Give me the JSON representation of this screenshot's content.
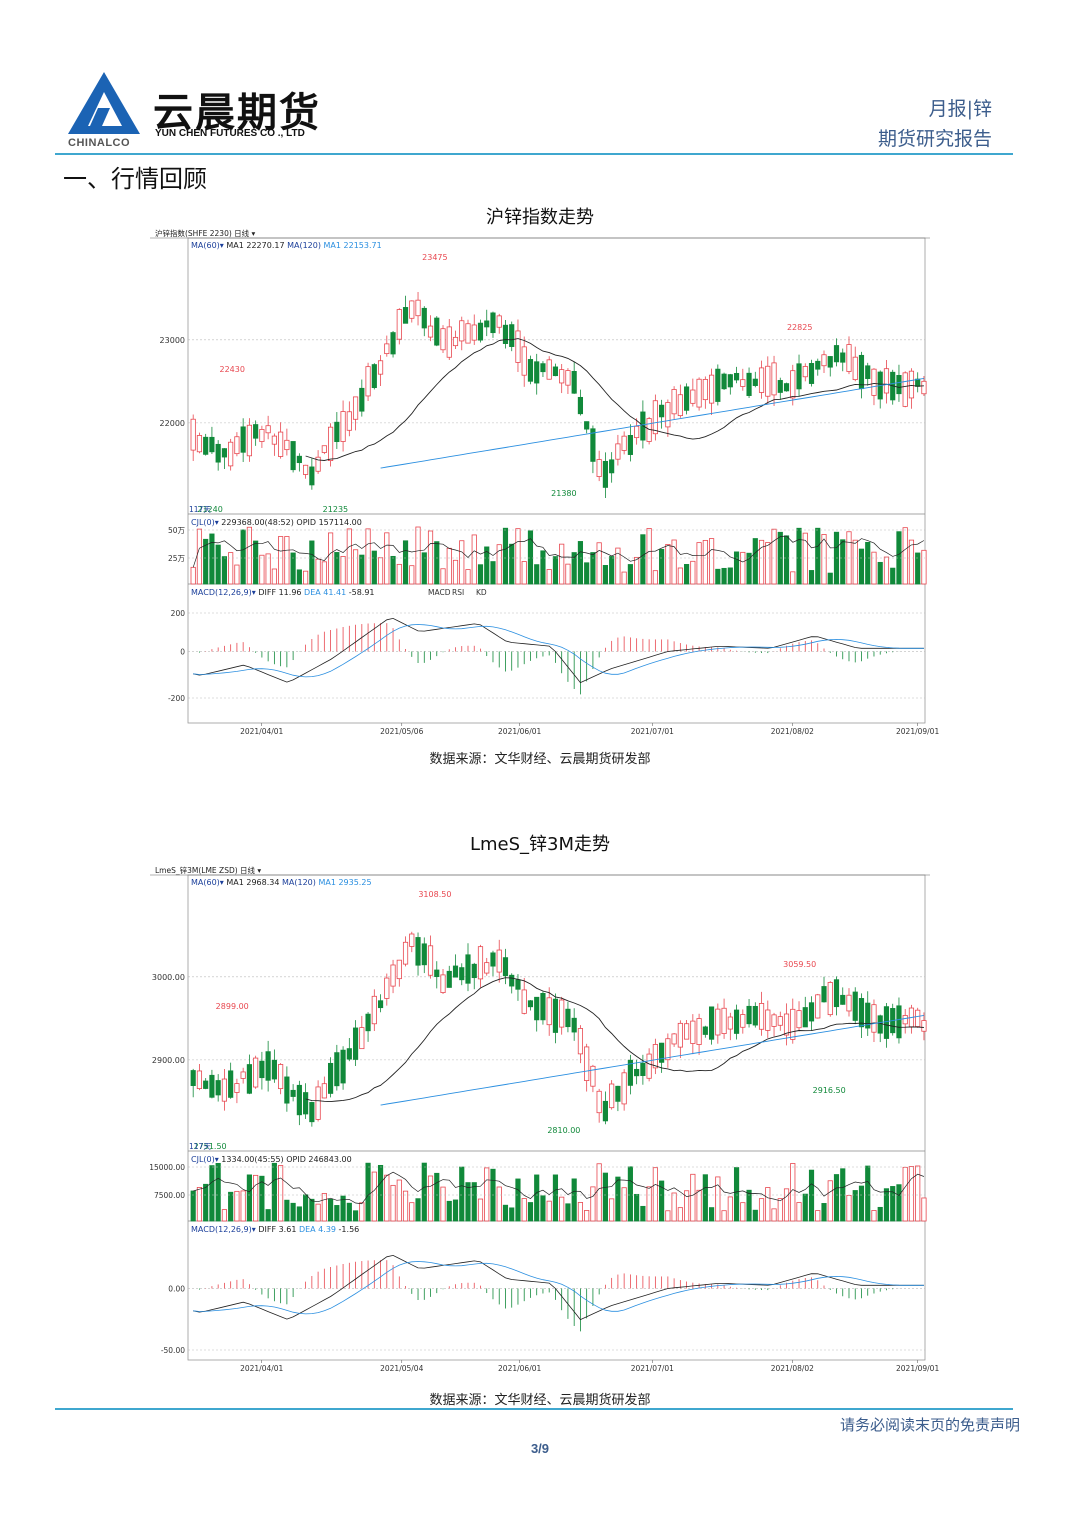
{
  "header": {
    "company_name": "云晨期货",
    "company_name_en": "YUN CHEN FUTURES CO ., LTD",
    "brand": "CHINALCO",
    "report_type": "月报|锌",
    "report_subtitle": "期货研究报告"
  },
  "section_title": "一、行情回顾",
  "charts": [
    {
      "title": "沪锌指数走势",
      "header_label": "沪锌指数(SHFE 2230)  日线",
      "ma_label": "MA(60)",
      "ma1_label": "MA1 22270.17",
      "ma120_label": "MA(120)",
      "ma1b_label": "MA1 22153.71",
      "price_ticks": [
        "23000",
        "22000"
      ],
      "annotations": {
        "high": "23475",
        "left_high": "22430",
        "right_high": "22825",
        "low1": "21380",
        "low2": "21235",
        "left_low": "21240"
      },
      "days_label": "117天",
      "vol_label": "CJL(0)",
      "vol_info": "229368.00(48:52)  OPID 157114.00",
      "vol_ticks": [
        "50万",
        "25万"
      ],
      "macd_label": "MACD(12,26,9)",
      "diff_label": "DIFF 11.96",
      "dea_label": "DEA 41.41",
      "macd_value": "-58.91",
      "tabs": [
        "MACD",
        "RSI",
        "KD"
      ],
      "macd_ticks": [
        "200",
        "0",
        "-200"
      ],
      "dates": [
        "2021/04/01",
        "2021/05/06",
        "2021/06/01",
        "2021/07/01",
        "2021/08/02",
        "2021/09/01"
      ],
      "source": "数据来源：文华财经、云晨期货研发部"
    },
    {
      "title": "LmeS_锌3M走势",
      "header_label": "LmeS_锌3M(LME ZSD)  日线",
      "ma_label": "MA(60)",
      "ma1_label": "MA1 2968.34",
      "ma120_label": "MA(120)",
      "ma1b_label": "MA1 2935.25",
      "price_ticks": [
        "3000.00",
        "2900.00"
      ],
      "annotations": {
        "high": "3108.50",
        "left_high": "2899.00",
        "right_high": "3059.50",
        "low1": "2810.00",
        "right_low": "2916.50",
        "left_low": "2751.50"
      },
      "days_label": "117天",
      "vol_label": "CJL(0)",
      "vol_info": "1334.00(45:55)  OPID 246843.00",
      "vol_ticks": [
        "15000.00",
        "7500.00"
      ],
      "macd_label": "MACD(12,26,9)",
      "diff_label": "DIFF 3.61",
      "dea_label": "DEA 4.39",
      "macd_value": "-1.56",
      "macd_ticks": [
        "0.00",
        "-50.00"
      ],
      "dates": [
        "2021/04/01",
        "2021/05/04",
        "2021/06/01",
        "2021/07/01",
        "2021/08/02",
        "2021/09/01"
      ],
      "source": "数据来源：文华财经、云晨期货研发部"
    }
  ],
  "footer": {
    "disclaimer": "请务必阅读末页的免责声明",
    "page": "3/9"
  },
  "colors": {
    "accent": "#3fa7cf",
    "up": "#e8474f",
    "down": "#11893a",
    "ma60": "#222222",
    "ma120": "#2b8fe0"
  }
}
